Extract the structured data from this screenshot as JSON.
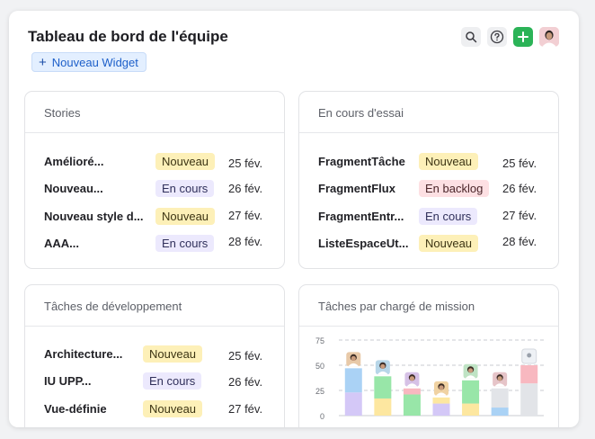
{
  "header": {
    "title": "Tableau de bord de l'équipe",
    "new_widget_label": "Nouveau Widget",
    "icons": [
      "search-icon",
      "help-icon",
      "add-icon",
      "user-avatar"
    ]
  },
  "colors": {
    "nouveau": "#fdf0b8",
    "en_cours": "#ece9fd",
    "en_backlog": "#fde0e3",
    "accent_green": "#2bb357"
  },
  "cards": {
    "stories": {
      "title": "Stories",
      "rows": [
        {
          "name": "Amélioré...",
          "status": "Nouveau",
          "date": "25 fév."
        },
        {
          "name": "Nouveau...",
          "status": "En cours",
          "date": "26 fév."
        },
        {
          "name": "Nouveau style d...",
          "status": "Nouveau",
          "date": "27 fév."
        },
        {
          "name": "AAA...",
          "status": "En cours",
          "date": "28 fév."
        }
      ]
    },
    "essai": {
      "title": "En cours d'essai",
      "rows": [
        {
          "name": "FragmentTâche",
          "status": "Nouveau",
          "date": "25 fév."
        },
        {
          "name": "FragmentFlux",
          "status": "En backlog",
          "date": "26 fév."
        },
        {
          "name": "FragmentEntr...",
          "status": "En cours",
          "date": "27 fév."
        },
        {
          "name": "ListeEspaceUt...",
          "status": "Nouveau",
          "date": "28 fév."
        }
      ]
    },
    "dev": {
      "title": "Tâches de développement",
      "rows": [
        {
          "name": "Architecture...",
          "status": "Nouveau",
          "date": "25 fév."
        },
        {
          "name": "IU UPP...",
          "status": "En cours",
          "date": "26 fév."
        },
        {
          "name": "Vue-définie",
          "status": "Nouveau",
          "date": "27 fév."
        }
      ]
    },
    "chart": {
      "title": "Tâches par chargé de mission"
    }
  },
  "chart_data": {
    "type": "bar",
    "stacked": true,
    "ylim": [
      0,
      75
    ],
    "yticks": [
      "0",
      "25",
      "50",
      "75"
    ],
    "categories": [
      "1",
      "2",
      "3",
      "4",
      "5",
      "6",
      "7"
    ],
    "category_avatars": [
      "person-avatar",
      "person-avatar",
      "person-avatar",
      "person-avatar",
      "person-avatar",
      "person-avatar",
      "unassigned-avatar"
    ],
    "grid": true,
    "series": [
      {
        "color": "#d4c8f7",
        "values": [
          23,
          0,
          0,
          12,
          0,
          0,
          0
        ]
      },
      {
        "color": "#fde7a0",
        "values": [
          0,
          17,
          0,
          0,
          12,
          0,
          0
        ]
      },
      {
        "color": "#98e6a8",
        "values": [
          0,
          22,
          21,
          0,
          23,
          0,
          0
        ]
      },
      {
        "color": "#aad2f5",
        "values": [
          24,
          0,
          0,
          0,
          0,
          8,
          0
        ]
      },
      {
        "color": "#e2e4e8",
        "values": [
          0,
          0,
          0,
          0,
          0,
          19,
          32
        ]
      },
      {
        "color": "#f8b8c0",
        "values": [
          0,
          0,
          6,
          0,
          0,
          0,
          18
        ]
      },
      {
        "color": "#fde7a0",
        "values": [
          0,
          0,
          0,
          6,
          0,
          0,
          0
        ]
      }
    ]
  }
}
